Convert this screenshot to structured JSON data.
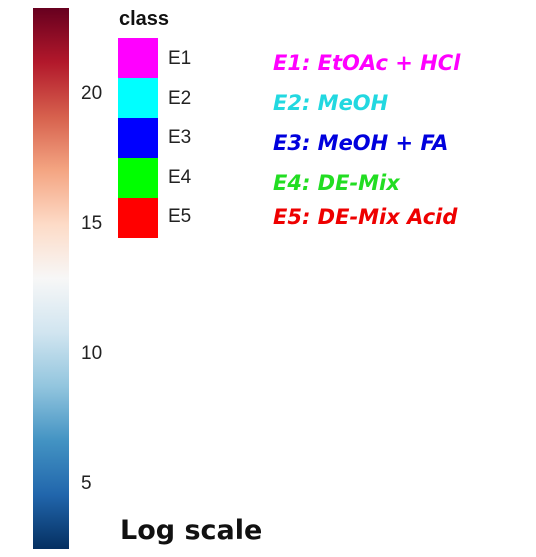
{
  "chart_data": {
    "type": "heatmap",
    "colorbar": {
      "min": 2.5,
      "max": 23.3,
      "ticks": [
        5,
        10,
        15,
        20
      ],
      "tick_labels": [
        "5",
        "10",
        "15",
        "20"
      ],
      "colormap_low_to_high": [
        "#053061",
        "#2166ac",
        "#4393c3",
        "#92c5de",
        "#d1e5f0",
        "#f7f7f7",
        "#fddbc7",
        "#f4a582",
        "#d6604d",
        "#b2182b",
        "#67001f"
      ],
      "label": "Log scale"
    },
    "legend": {
      "title": "class",
      "placement": "right-of-colorbar",
      "entries": [
        {
          "label": "E1",
          "color": "#ff00ff"
        },
        {
          "label": "E2",
          "color": "#00ffff"
        },
        {
          "label": "E3",
          "color": "#0000ff"
        },
        {
          "label": "E4",
          "color": "#00ff00"
        },
        {
          "label": "E5",
          "color": "#ff0000"
        }
      ]
    },
    "annotations": [
      {
        "text": "E1: EtOAc + HCl",
        "color": "#ff00ff"
      },
      {
        "text": "E2: MeOH",
        "color": "#22d8e0"
      },
      {
        "text": "E3: MeOH + FA",
        "color": "#0000dd"
      },
      {
        "text": "E4: DE-Mix",
        "color": "#22dd22"
      },
      {
        "text": "E5: DE-Mix Acid",
        "color": "#ee0000"
      }
    ]
  }
}
